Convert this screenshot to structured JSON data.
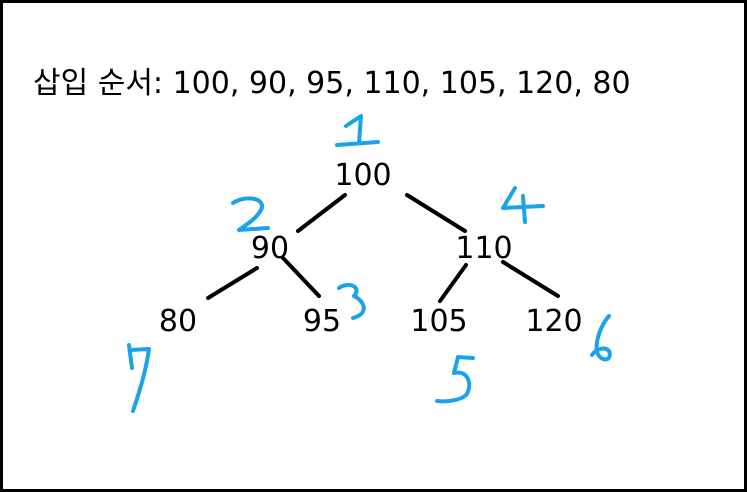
{
  "title": "삽입 순서: 100, 90, 95, 110, 105, 120, 80",
  "nodes": [
    {
      "id": "n100",
      "label": "100"
    },
    {
      "id": "n90",
      "label": "90"
    },
    {
      "id": "n110",
      "label": "110"
    },
    {
      "id": "n80",
      "label": "80"
    },
    {
      "id": "n95",
      "label": "95"
    },
    {
      "id": "n105",
      "label": "105"
    },
    {
      "id": "n120",
      "label": "120"
    }
  ],
  "edges": [
    [
      "n100",
      "n90"
    ],
    [
      "n100",
      "n110"
    ],
    [
      "n90",
      "n80"
    ],
    [
      "n90",
      "n95"
    ],
    [
      "n110",
      "n105"
    ],
    [
      "n110",
      "n120"
    ]
  ],
  "insertion_marks": [
    {
      "node": "n100",
      "number": "1"
    },
    {
      "node": "n90",
      "number": "2"
    },
    {
      "node": "n95",
      "number": "3"
    },
    {
      "node": "n110",
      "number": "4"
    },
    {
      "node": "n105",
      "number": "5"
    },
    {
      "node": "n120",
      "number": "6"
    },
    {
      "node": "n80",
      "number": "7"
    }
  ],
  "colors": {
    "ink": "#000000",
    "annotation": "#1aa3e8",
    "border": "#000000"
  }
}
